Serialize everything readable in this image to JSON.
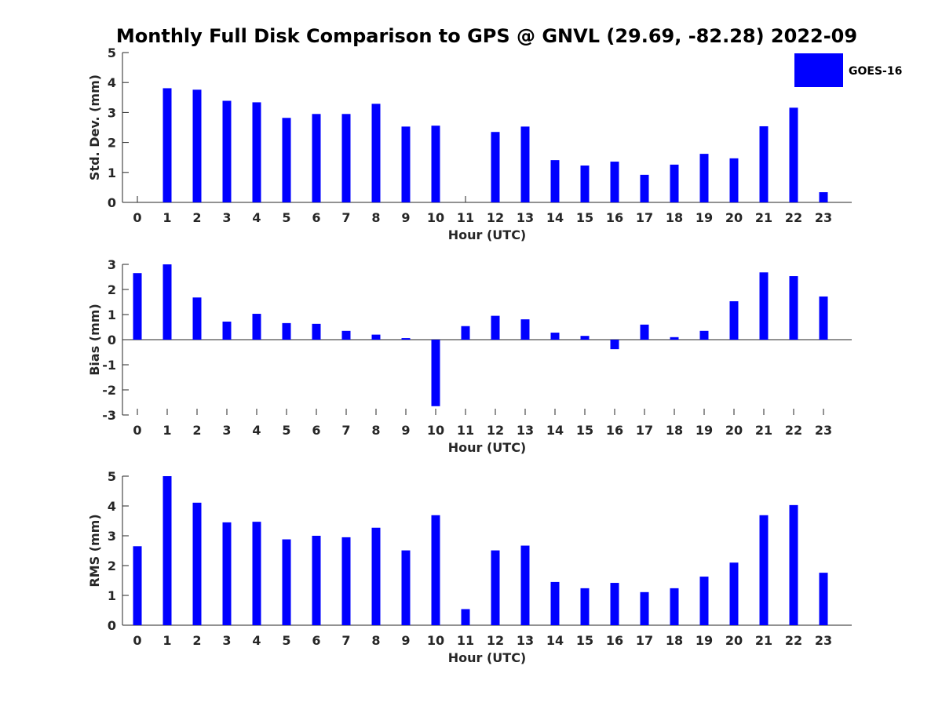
{
  "chart_data": [
    {
      "type": "bar",
      "title": "Monthly Full Disk Comparison to GPS @ GNVL (29.69, -82.28) 2022-09",
      "xlabel": "Hour (UTC)",
      "ylabel": "Std. Dev. (mm)",
      "ylim": [
        0,
        5
      ],
      "yticks": [
        0,
        1,
        2,
        3,
        4,
        5
      ],
      "categories": [
        "0",
        "1",
        "2",
        "3",
        "4",
        "5",
        "6",
        "7",
        "8",
        "9",
        "10",
        "11",
        "12",
        "13",
        "14",
        "15",
        "16",
        "17",
        "18",
        "19",
        "20",
        "21",
        "22",
        "23"
      ],
      "series": [
        {
          "name": "GOES-16",
          "color": "#0000ff",
          "values": [
            0,
            3.81,
            3.76,
            3.39,
            3.34,
            2.82,
            2.95,
            2.95,
            3.29,
            2.53,
            2.56,
            0,
            2.35,
            2.53,
            1.41,
            1.23,
            1.36,
            0.92,
            1.26,
            1.62,
            1.47,
            2.54,
            3.16,
            0.34
          ]
        }
      ],
      "legend": "top-right",
      "grid": false
    },
    {
      "type": "bar",
      "xlabel": "Hour (UTC)",
      "ylabel": "Bias (mm)",
      "ylim": [
        -3,
        3
      ],
      "yticks": [
        -3,
        -2,
        -1,
        0,
        1,
        2,
        3
      ],
      "categories": [
        "0",
        "1",
        "2",
        "3",
        "4",
        "5",
        "6",
        "7",
        "8",
        "9",
        "10",
        "11",
        "12",
        "13",
        "14",
        "15",
        "16",
        "17",
        "18",
        "19",
        "20",
        "21",
        "22",
        "23"
      ],
      "series": [
        {
          "name": "GOES-16",
          "color": "#0000ff",
          "values": [
            2.65,
            3.0,
            1.68,
            0.72,
            1.03,
            0.66,
            0.63,
            0.35,
            0.2,
            0.06,
            -2.65,
            0.54,
            0.95,
            0.81,
            0.28,
            0.15,
            -0.38,
            0.6,
            0.1,
            0.35,
            1.53,
            2.68,
            2.53,
            1.72
          ]
        }
      ],
      "grid": false
    },
    {
      "type": "bar",
      "xlabel": "Hour (UTC)",
      "ylabel": "RMS (mm)",
      "ylim": [
        0,
        5
      ],
      "yticks": [
        0,
        1,
        2,
        3,
        4,
        5
      ],
      "categories": [
        "0",
        "1",
        "2",
        "3",
        "4",
        "5",
        "6",
        "7",
        "8",
        "9",
        "10",
        "11",
        "12",
        "13",
        "14",
        "15",
        "16",
        "17",
        "18",
        "19",
        "20",
        "21",
        "22",
        "23"
      ],
      "series": [
        {
          "name": "GOES-16",
          "color": "#0000ff",
          "values": [
            2.65,
            5.0,
            4.11,
            3.45,
            3.47,
            2.88,
            3.0,
            2.95,
            3.27,
            2.51,
            3.69,
            0.54,
            2.51,
            2.67,
            1.45,
            1.24,
            1.42,
            1.11,
            1.24,
            1.63,
            2.1,
            3.69,
            4.03,
            1.76
          ]
        }
      ],
      "grid": false
    }
  ],
  "legend": {
    "label": "GOES-16",
    "color": "#0000ff"
  }
}
